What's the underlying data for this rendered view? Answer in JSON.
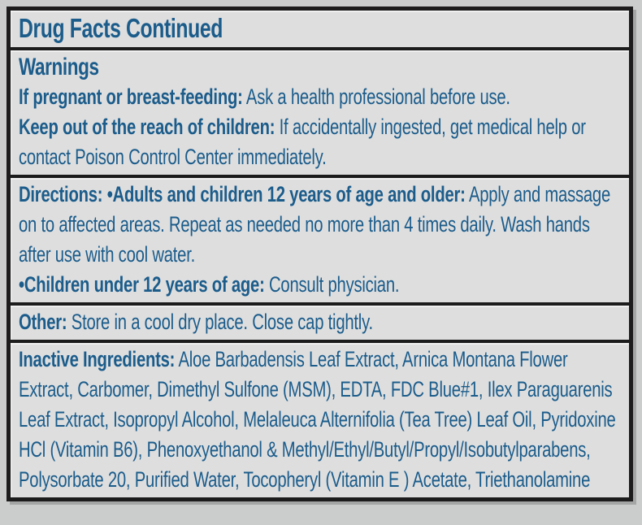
{
  "colors": {
    "text": "#1b5c8b",
    "border": "#1c1c1c",
    "section_bg": "#dedede",
    "page_bg": "#cbcccc"
  },
  "label": {
    "title": "Drug Facts Continued",
    "warnings": {
      "heading": "Warnings",
      "p1_bold": "If pregnant or breast-feeding:",
      "p1_text": " Ask a health professional before use.",
      "p2_bold": "Keep out of the reach of children:",
      "p2_text": " If accidentally ingested, get medical help or contact Poison Control Center immediately."
    },
    "directions": {
      "p1_bold": "Directions: •Adults and children 12 years of age and older:",
      "p1_text": " Apply and massage on to affected areas. Repeat as needed no more than 4 times daily. Wash hands after use with cool water.",
      "p2_bold": "•Children under 12 years of age:",
      "p2_text": " Consult physician."
    },
    "other": {
      "bold": "Other:",
      "text": " Store in a cool dry place. Close cap tightly."
    },
    "inactive_ingredients": {
      "bold": "Inactive Ingredients:",
      "text": " Aloe Barbadensis Leaf Extract, Arnica Montana Flower Extract, Carbomer, Dimethyl Sulfone (MSM), EDTA, FDC Blue#1, Ilex Paraguarenis Leaf Extract, Isopropyl Alcohol, Melaleuca Alternifolia (Tea Tree) Leaf Oil, Pyridoxine HCl (Vitamin B6), Phenoxyethanol & Methyl/Ethyl/Butyl/Propyl/Isobutylparabens, Polysorbate 20, Purified Water, Tocopheryl (Vitamin E ) Acetate, Triethanolamine"
    }
  }
}
